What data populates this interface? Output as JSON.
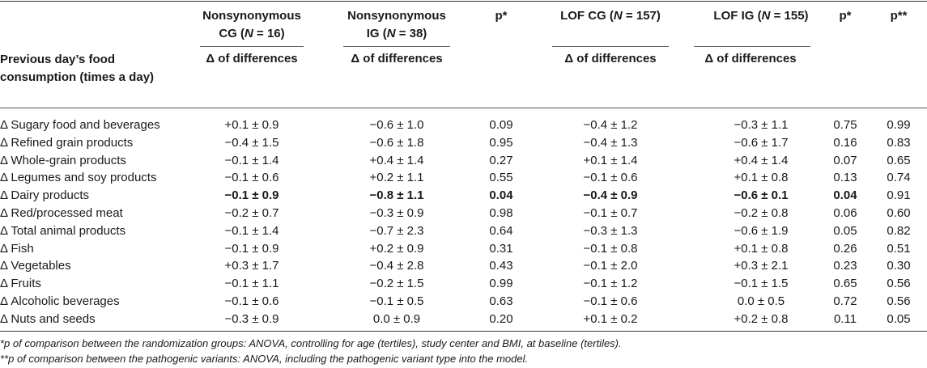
{
  "header": {
    "col1_line1": "Nonsynonymous",
    "col1_line2_pre": "CG (",
    "col1_n": "N",
    "col1_line2_post": " = 16)",
    "col2_line1": "Nonsynonymous",
    "col2_line2_pre": "IG (",
    "col2_n": "N",
    "col2_line2_post": " = 38)",
    "p1": "p*",
    "col4_pre": "LOF CG (",
    "col4_n": "N",
    "col4_post": " = 157)",
    "col5_pre": "LOF IG (",
    "col5_n": "N",
    "col5_post": " = 155)",
    "p2": "p*",
    "p3": "p**",
    "delta_label": "Δ of differences",
    "row_header": "Previous day’s food consumption (times a day)"
  },
  "rows": [
    [
      "Δ Sugary food and beverages",
      "+0.1 ± 0.9",
      "−0.6 ± 1.0",
      "0.09",
      "−0.4 ± 1.2",
      "−0.3 ± 1.1",
      "0.75",
      "0.99"
    ],
    [
      "Δ Refined grain products",
      "−0.4 ± 1.5",
      "−0.6 ± 1.8",
      "0.95",
      "−0.4 ± 1.3",
      "−0.6 ± 1.7",
      "0.16",
      "0.83"
    ],
    [
      "Δ Whole-grain products",
      "−0.1 ± 1.4",
      "+0.4 ± 1.4",
      "0.27",
      "+0.1 ± 1.4",
      "+0.4 ± 1.4",
      "0.07",
      "0.65"
    ],
    [
      "Δ Legumes and soy products",
      "−0.1 ± 0.6",
      "+0.2 ± 1.1",
      "0.55",
      "−0.1 ± 0.6",
      "+0.1 ± 0.8",
      "0.13",
      "0.74"
    ],
    [
      "Δ Dairy products",
      "−0.1 ± 0.9",
      "−0.8 ± 1.1",
      "0.04",
      "−0.4 ± 0.9",
      "−0.6 ± 0.1",
      "0.04",
      "0.91"
    ],
    [
      "Δ Red/processed meat",
      "−0.2 ± 0.7",
      "−0.3 ± 0.9",
      "0.98",
      "−0.1 ± 0.7",
      "−0.2 ± 0.8",
      "0.06",
      "0.60"
    ],
    [
      "Δ Total animal products",
      "−0.1 ± 1.4",
      "−0.7 ± 2.3",
      "0.64",
      "−0.3 ± 1.3",
      "−0.6 ± 1.9",
      "0.05",
      "0.82"
    ],
    [
      "Δ Fish",
      "−0.1 ± 0.9",
      "+0.2 ± 0.9",
      "0.31",
      "−0.1 ± 0.8",
      "+0.1 ± 0.8",
      "0.26",
      "0.51"
    ],
    [
      "Δ Vegetables",
      "+0.3 ± 1.7",
      "−0.4 ± 2.8",
      "0.43",
      "−0.1 ± 2.0",
      "+0.3 ± 2.1",
      "0.23",
      "0.30"
    ],
    [
      "Δ Fruits",
      "−0.1 ± 1.1",
      "−0.2 ± 1.5",
      "0.99",
      "−0.1 ± 1.2",
      "−0.1 ± 1.5",
      "0.65",
      "0.56"
    ],
    [
      "Δ Alcoholic beverages",
      "−0.1 ± 0.6",
      "−0.1 ± 0.5",
      "0.63",
      "−0.1 ± 0.6",
      "0.0 ± 0.5",
      "0.72",
      "0.56"
    ],
    [
      "Δ Nuts and seeds",
      "−0.3 ± 0.9",
      "0.0 ± 0.9",
      "0.20",
      "+0.1 ± 0.2",
      "+0.2 ± 0.8",
      "0.11",
      "0.05"
    ]
  ],
  "bold_row_index": 4,
  "footnotes": {
    "f1": "*p of comparison between the randomization groups: ANOVA, controlling for age (tertiles), study center and BMI, at baseline (tertiles).",
    "f2": "**p of comparison between the pathogenic variants: ANOVA, including the pathogenic variant type into the model."
  }
}
